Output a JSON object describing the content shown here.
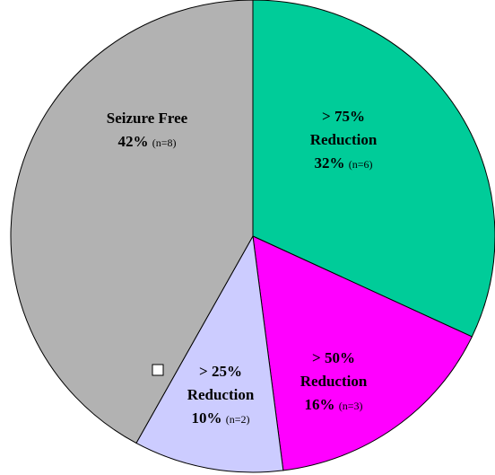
{
  "chart_data": {
    "type": "pie",
    "categories": [
      [
        "> 75%",
        "Reduction"
      ],
      [
        "> 50%",
        "Reduction"
      ],
      [
        "> 25%",
        "Reduction"
      ],
      [
        "Seizure Free"
      ]
    ],
    "values": [
      32,
      16,
      10,
      42
    ],
    "value_labels": [
      "32%",
      "16%",
      "10%",
      "42%"
    ],
    "counts": [
      "(n=6)",
      "(n=3)",
      "(n=2)",
      "(n=8)"
    ],
    "colors": [
      "#00cc99",
      "#ff00ff",
      "#ccccff",
      "#b2b2b2"
    ]
  }
}
